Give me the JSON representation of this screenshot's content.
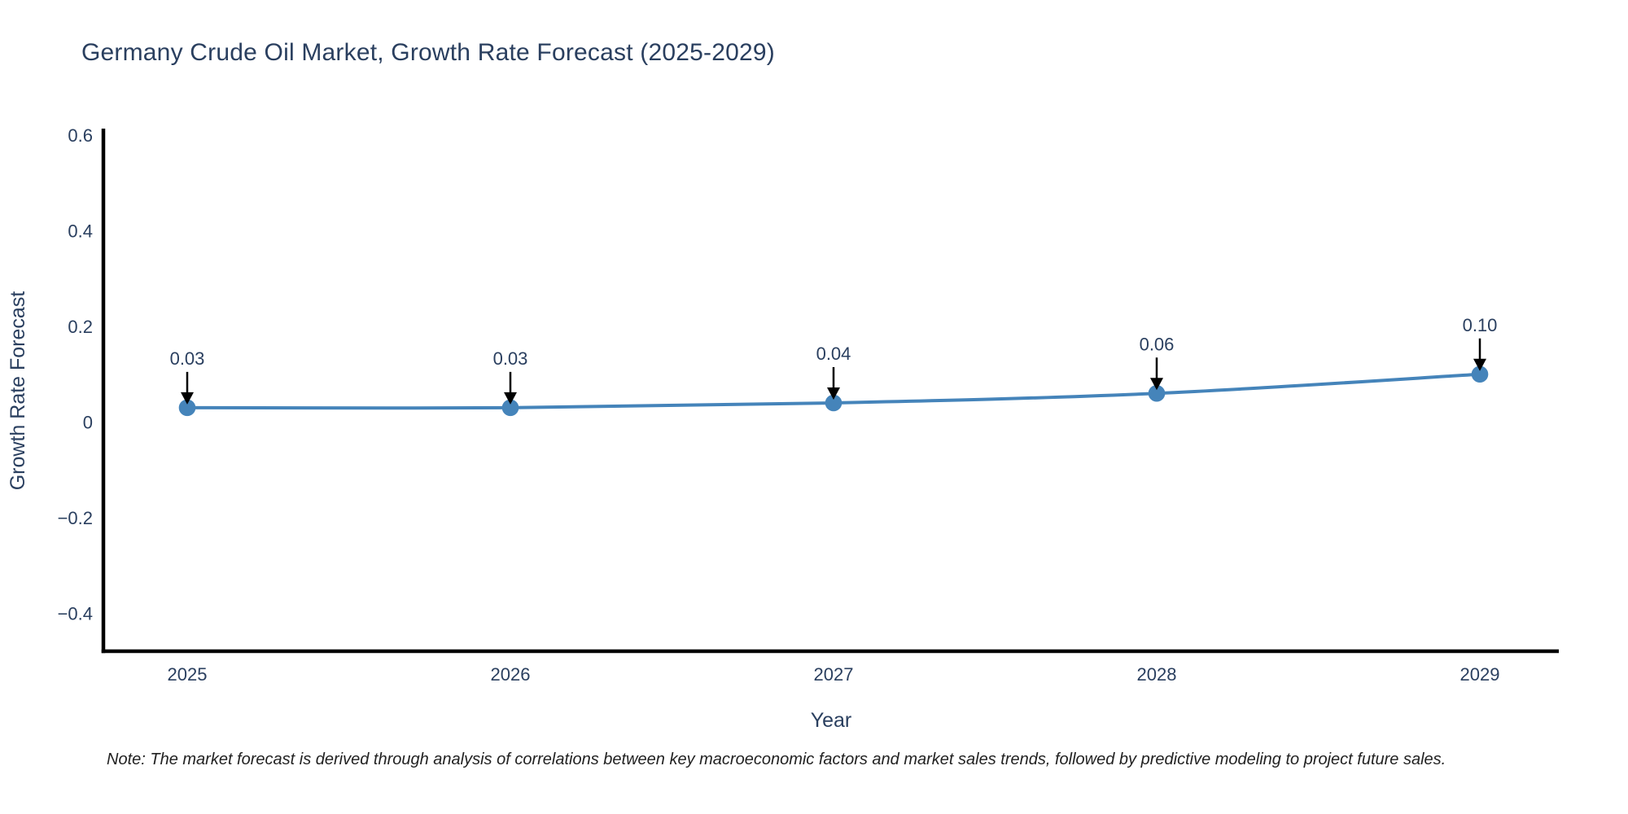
{
  "title": "Germany Crude Oil Market, Growth Rate Forecast (2025-2029)",
  "note": "Note: The market forecast is derived through analysis of correlations between key macroeconomic factors and market sales trends, followed by predictive modeling to project future sales.",
  "chart_data": {
    "type": "line",
    "title": "Germany Crude Oil Market, Growth Rate Forecast (2025-2029)",
    "xlabel": "Year",
    "ylabel": "Growth Rate Forecast",
    "categories": [
      "2025",
      "2026",
      "2027",
      "2028",
      "2029"
    ],
    "series": [
      {
        "name": "Growth Rate Forecast",
        "values": [
          0.03,
          0.03,
          0.04,
          0.06,
          0.1
        ],
        "point_labels": [
          "0.03",
          "0.03",
          "0.04",
          "0.06",
          "0.10"
        ]
      }
    ],
    "yticks": [
      0.6,
      0.4,
      0.2,
      0,
      -0.2,
      -0.4
    ],
    "ytick_labels": [
      "0.6",
      "0.4",
      "0.2",
      "0",
      "−0.2",
      "−0.4"
    ],
    "ylim": [
      -0.48,
      0.61
    ],
    "grid": false,
    "legend_position": "none",
    "line_shape": "spline",
    "annotations": "value labels with downward arrows above each point",
    "colors": {
      "line": "#4584ba",
      "marker": "#4584ba",
      "axis": "#000000",
      "arrow": "#000000",
      "text": "#2a3f5f",
      "note_text": "#222222",
      "background": "#ffffff"
    }
  }
}
